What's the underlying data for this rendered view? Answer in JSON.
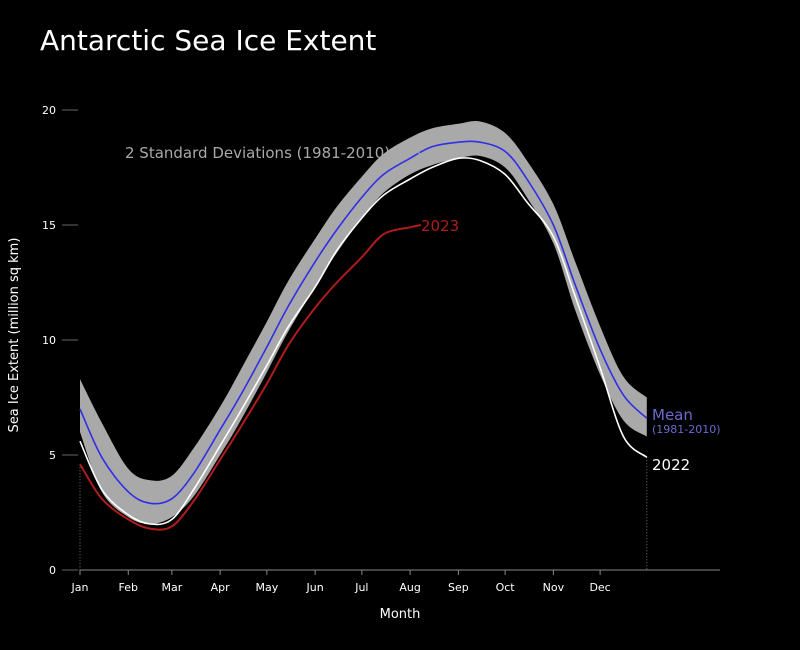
{
  "chart_data": {
    "type": "line",
    "title": "Antarctic Sea Ice Extent",
    "xlabel": "Month",
    "ylabel": "Sea Ice Extent (million sq km)",
    "x_ticks": [
      "Jan",
      "Feb",
      "Mar",
      "Apr",
      "May",
      "Jun",
      "Jul",
      "Aug",
      "Sep",
      "Oct",
      "Nov",
      "Dec"
    ],
    "xlim": [
      1,
      412
    ],
    "ylim": [
      0,
      20
    ],
    "y_ticks": [
      0,
      5,
      10,
      15,
      20
    ],
    "grid": false,
    "colors": {
      "background": "#000000",
      "band": "#a9a9a9",
      "mean": "#2f2fe6",
      "y2023": "#b01c1c",
      "y2022": "#ffffff",
      "mean_label": "#6b6bd0"
    },
    "band": {
      "name": "2 Standard Deviations (1981-2010)",
      "x": [
        1,
        15,
        32,
        46,
        60,
        74,
        91,
        105,
        121,
        135,
        152,
        166,
        182,
        196,
        213,
        227,
        244,
        258,
        274,
        288,
        305,
        319,
        335,
        350,
        365
      ],
      "upper": [
        8.3,
        6.4,
        4.4,
        3.9,
        4.1,
        5.3,
        7.1,
        8.8,
        10.8,
        12.6,
        14.4,
        15.8,
        17.1,
        18.1,
        18.8,
        19.2,
        19.4,
        19.5,
        19.0,
        17.8,
        15.9,
        13.4,
        10.6,
        8.4,
        7.5
      ],
      "lower": [
        6.0,
        3.4,
        2.3,
        2.0,
        2.3,
        3.2,
        5.0,
        6.6,
        8.6,
        10.4,
        12.3,
        13.8,
        15.3,
        16.4,
        17.2,
        17.6,
        17.9,
        18.0,
        17.5,
        16.2,
        14.2,
        11.3,
        8.5,
        6.5,
        5.8
      ]
    },
    "series": [
      {
        "name": "Mean",
        "sublabel": "(1981-2010)",
        "x": [
          1,
          15,
          32,
          46,
          60,
          74,
          91,
          105,
          121,
          135,
          152,
          166,
          182,
          196,
          213,
          227,
          244,
          258,
          274,
          288,
          305,
          319,
          335,
          350,
          365
        ],
        "values": [
          7.0,
          4.9,
          3.4,
          2.9,
          3.1,
          4.2,
          6.1,
          7.7,
          9.7,
          11.5,
          13.4,
          14.8,
          16.2,
          17.2,
          17.9,
          18.4,
          18.6,
          18.6,
          18.2,
          17.0,
          15.0,
          12.4,
          9.6,
          7.6,
          6.6
        ]
      },
      {
        "name": "2022",
        "x": [
          1,
          15,
          32,
          46,
          60,
          74,
          91,
          105,
          121,
          135,
          152,
          166,
          182,
          196,
          213,
          227,
          244,
          258,
          274,
          288,
          305,
          319,
          335,
          350,
          365
        ],
        "values": [
          5.6,
          3.5,
          2.4,
          2.0,
          2.2,
          3.5,
          5.4,
          7.0,
          8.9,
          10.6,
          12.3,
          13.9,
          15.3,
          16.3,
          17.0,
          17.5,
          17.9,
          17.8,
          17.2,
          16.0,
          14.5,
          11.9,
          8.8,
          5.8,
          4.9
        ]
      },
      {
        "name": "2023",
        "x": [
          1,
          15,
          32,
          46,
          60,
          74,
          91,
          105,
          121,
          135,
          152,
          166,
          182,
          196,
          213,
          220
        ],
        "values": [
          4.6,
          3.1,
          2.2,
          1.8,
          1.9,
          3.0,
          4.8,
          6.3,
          8.1,
          9.8,
          11.4,
          12.5,
          13.6,
          14.6,
          14.9,
          15.0
        ]
      }
    ],
    "annotations": {
      "band_label": "2 Standard Deviations (1981-2010)",
      "mean_label": "Mean",
      "mean_sublabel": "(1981-2010)",
      "label_2022": "2022",
      "label_2023": "2023"
    }
  }
}
